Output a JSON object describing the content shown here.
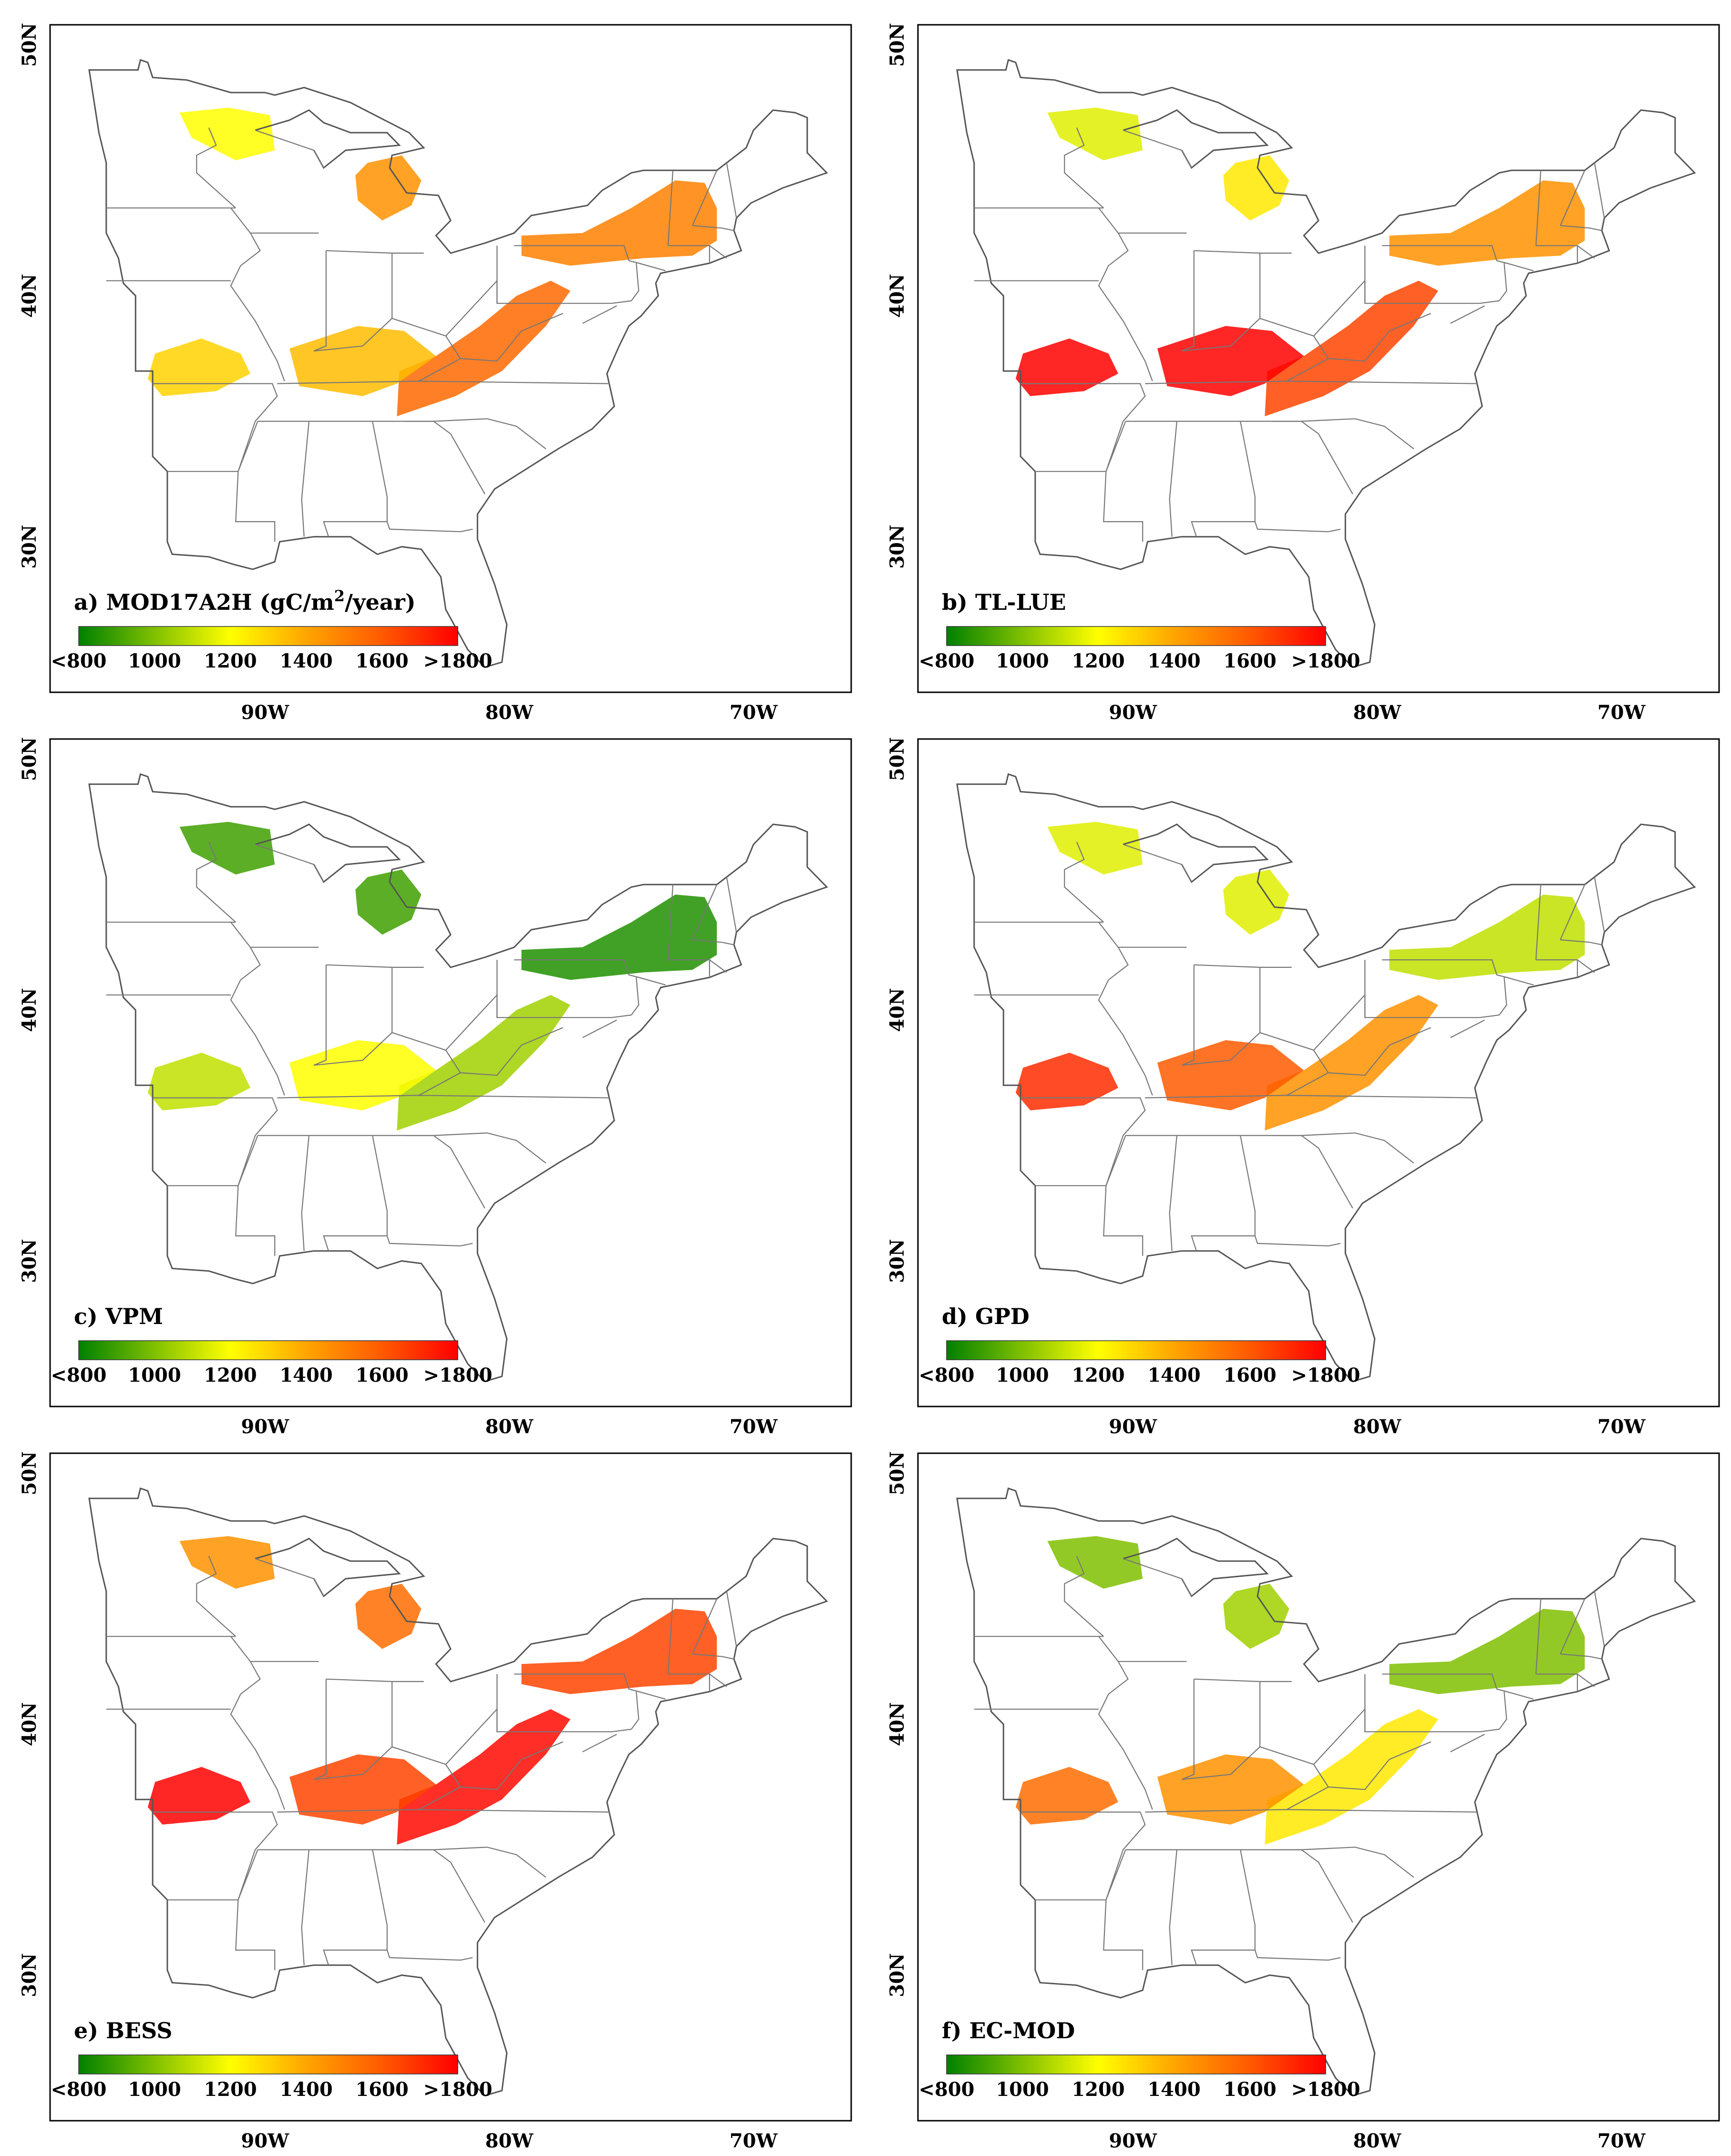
{
  "figure": {
    "colorbar": {
      "tick_labels": [
        "<800",
        "1000",
        "1200",
        "1400",
        "1600",
        ">1800"
      ],
      "values": [
        800,
        1000,
        1200,
        1400,
        1600,
        1800
      ],
      "colors": [
        "#008000",
        "#80c000",
        "#ffff00",
        "#ffa500",
        "#ff5a00",
        "#ff0000"
      ]
    },
    "axes": {
      "lat_labels": [
        "50N",
        "40N",
        "30N"
      ],
      "lon_labels": [
        "90W",
        "80W",
        "70W"
      ],
      "lat_values": [
        50,
        40,
        30
      ],
      "lon_values": [
        -90,
        -80,
        -70
      ]
    },
    "panels": [
      {
        "id": "a",
        "label": "a) MOD17A2H (gC/m",
        "unit_sup": "2",
        "unit_tail": "/year)",
        "regions": {
          "northeast": 1500,
          "central_appalachia": 1560,
          "ohio_valley": 1350,
          "ozarks": 1300,
          "upper_midwest": 1200,
          "michigan": 1450
        }
      },
      {
        "id": "b",
        "label": "b) TL-LUE",
        "unit_sup": "",
        "unit_tail": "",
        "regions": {
          "northeast": 1450,
          "central_appalachia": 1650,
          "ohio_valley": 1800,
          "ozarks": 1850,
          "upper_midwest": 1150,
          "michigan": 1250
        }
      },
      {
        "id": "c",
        "label": "c) VPM",
        "unit_sup": "",
        "unit_tail": "",
        "regions": {
          "northeast": 850,
          "central_appalachia": 1050,
          "ohio_valley": 1200,
          "ozarks": 1100,
          "upper_midwest": 900,
          "michigan": 900
        }
      },
      {
        "id": "d",
        "label": "d) GPD",
        "unit_sup": "",
        "unit_tail": "",
        "regions": {
          "northeast": 1100,
          "central_appalachia": 1450,
          "ohio_valley": 1600,
          "ozarks": 1700,
          "upper_midwest": 1150,
          "michigan": 1150
        }
      },
      {
        "id": "e",
        "label": "e) BESS",
        "unit_sup": "",
        "unit_tail": "",
        "regions": {
          "northeast": 1650,
          "central_appalachia": 1780,
          "ohio_valley": 1650,
          "ozarks": 1800,
          "upper_midwest": 1450,
          "michigan": 1550
        }
      },
      {
        "id": "f",
        "label": "f) EC-MOD",
        "unit_sup": "",
        "unit_tail": "",
        "regions": {
          "northeast": 1000,
          "central_appalachia": 1250,
          "ohio_valley": 1450,
          "ozarks": 1550,
          "upper_midwest": 1000,
          "michigan": 1050
        }
      }
    ]
  }
}
